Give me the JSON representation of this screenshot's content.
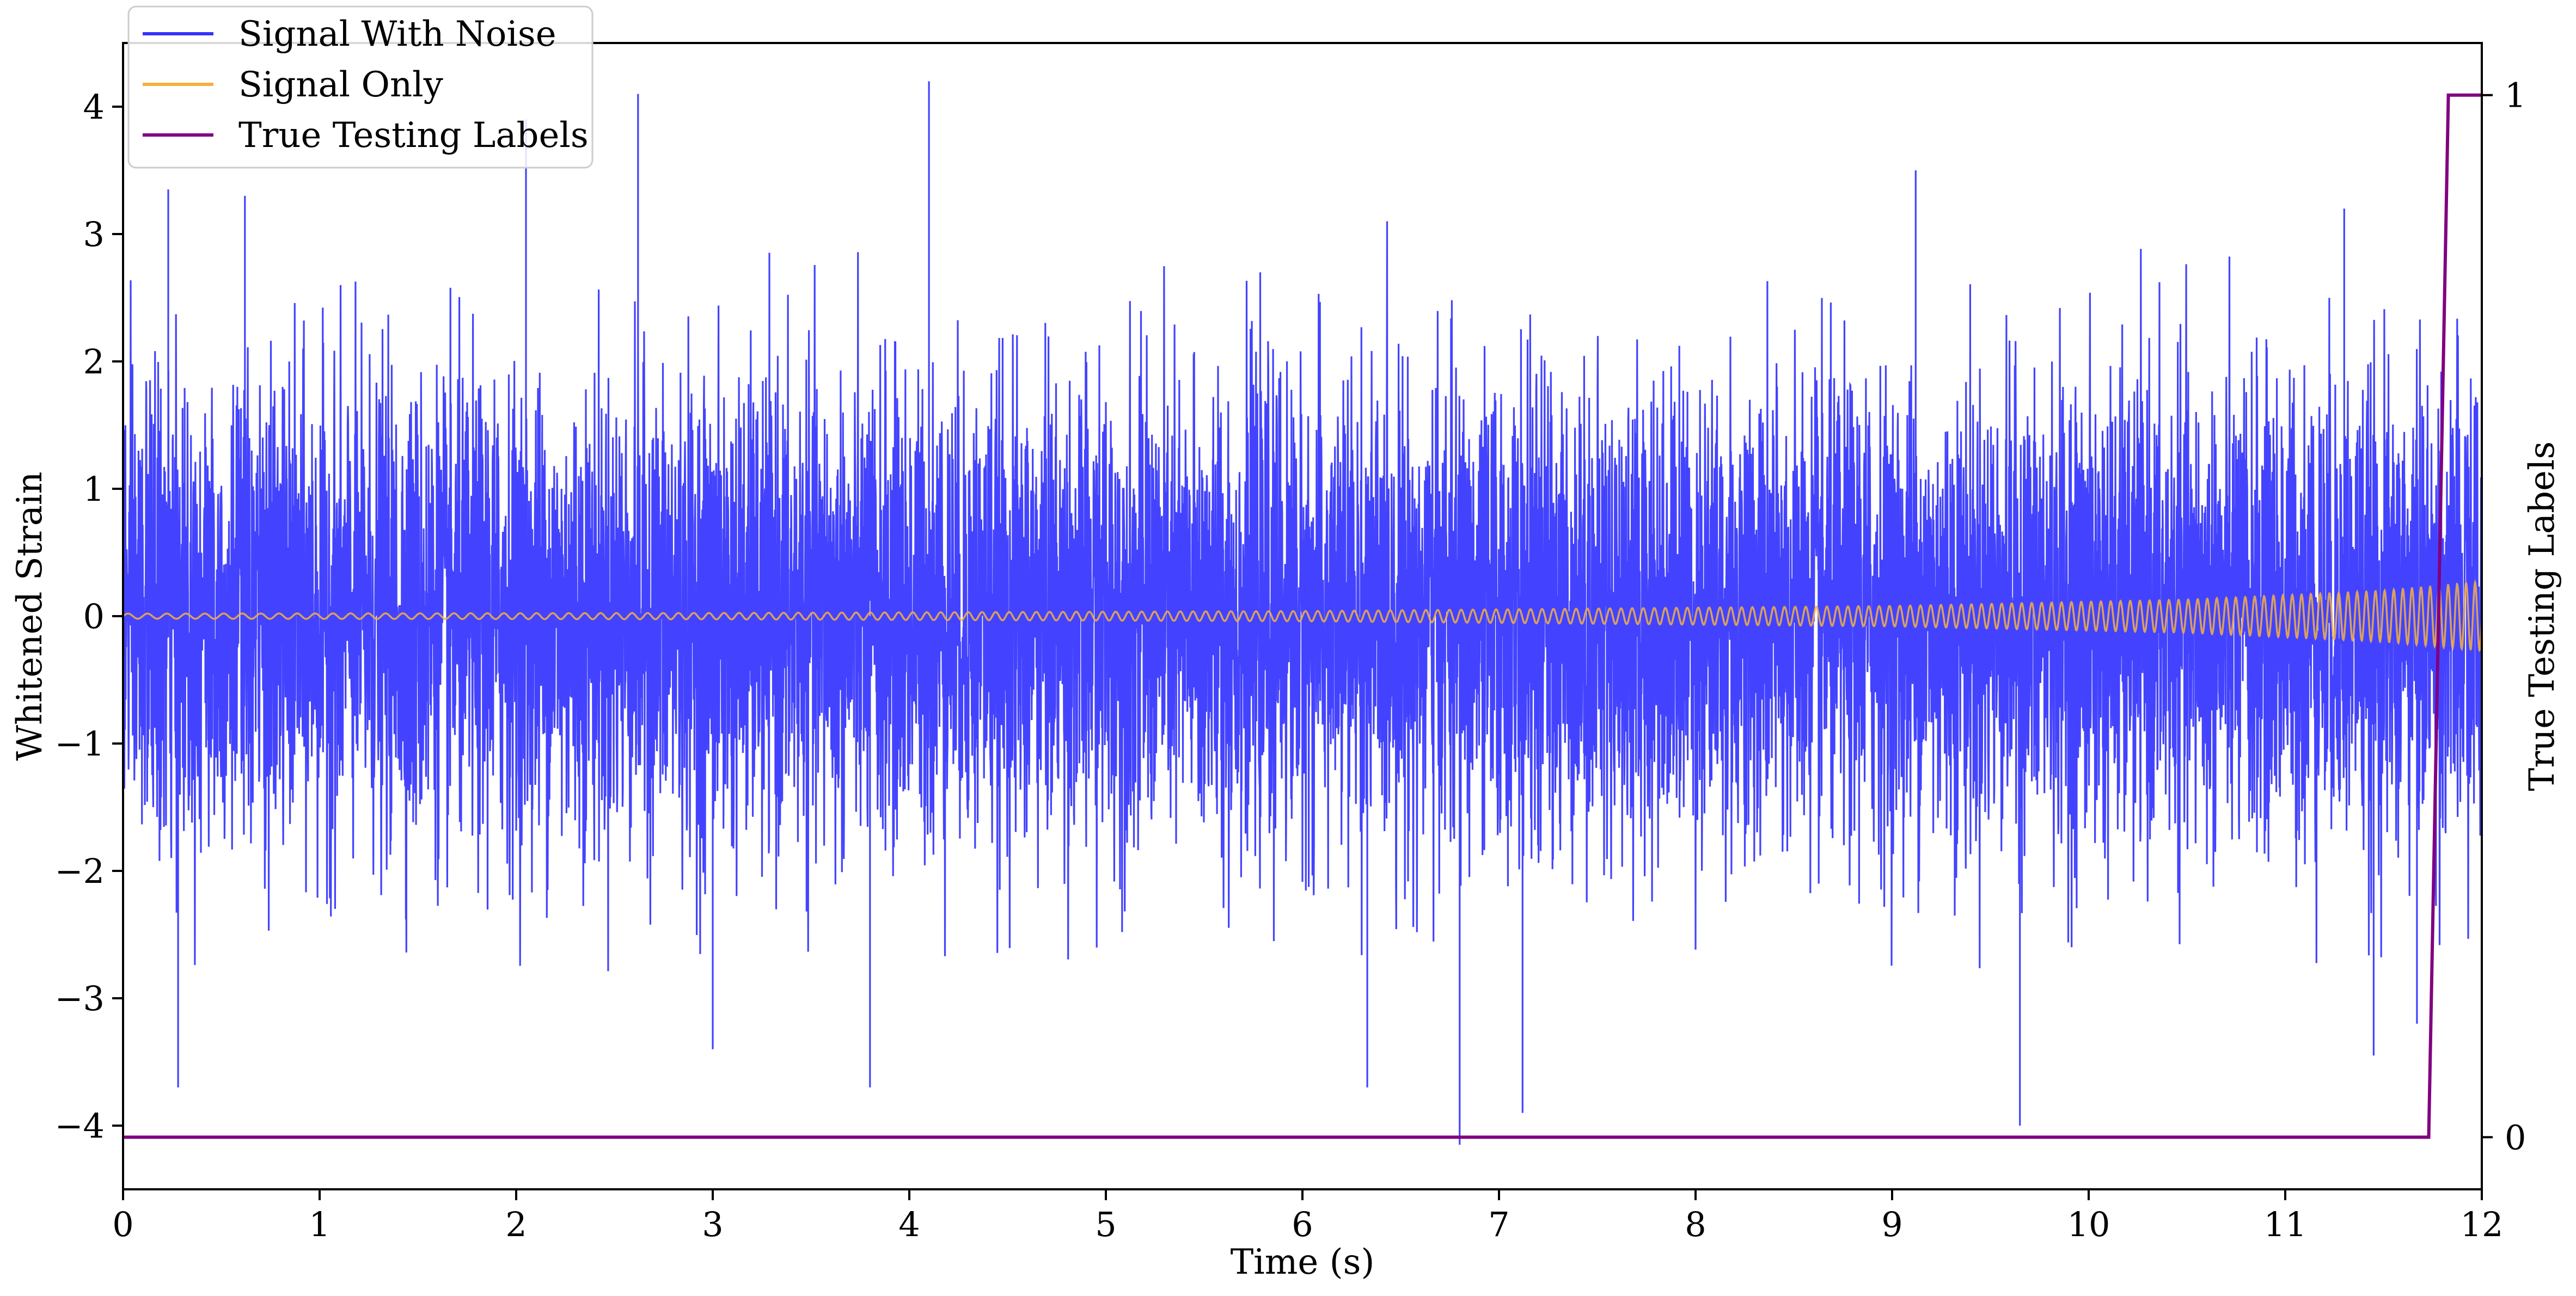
{
  "chart_data": {
    "type": "line",
    "title": "",
    "xlabel": "Time (s)",
    "ylabel": "Whitened Strain",
    "y2label": "True Testing Labels",
    "xlim": [
      0,
      12
    ],
    "ylim": [
      -4.5,
      4.5
    ],
    "y2lim": [
      -0.05,
      1.05
    ],
    "x_ticks": [
      0,
      1,
      2,
      3,
      4,
      5,
      6,
      7,
      8,
      9,
      10,
      11,
      12
    ],
    "y_ticks": [
      -4,
      -3,
      -2,
      -1,
      0,
      1,
      2,
      3,
      4
    ],
    "y2_ticks": [
      0,
      1
    ],
    "grid": false,
    "legend_position": "top-left",
    "series": [
      {
        "name": "Signal With Noise",
        "color": "#3333ff",
        "axis": "left",
        "description_values": {
          "approx_std": 0.9,
          "peaks": [
            {
              "x": 0.23,
              "y": 3.35
            },
            {
              "x": 0.28,
              "y": -3.7
            },
            {
              "x": 0.62,
              "y": 3.3
            },
            {
              "x": 2.05,
              "y": 3.9
            },
            {
              "x": 2.62,
              "y": 4.1
            },
            {
              "x": 3.0,
              "y": -3.4
            },
            {
              "x": 3.8,
              "y": -3.7
            },
            {
              "x": 4.1,
              "y": 4.2
            },
            {
              "x": 6.33,
              "y": -3.7
            },
            {
              "x": 6.8,
              "y": -4.15
            },
            {
              "x": 7.12,
              "y": -3.9
            },
            {
              "x": 9.65,
              "y": -4.0
            },
            {
              "x": 9.12,
              "y": 3.5
            },
            {
              "x": 11.3,
              "y": 3.2
            },
            {
              "x": 11.45,
              "y": -3.45
            },
            {
              "x": 11.67,
              "y": -3.2
            }
          ]
        }
      },
      {
        "name": "Signal Only",
        "color": "#f5b041",
        "axis": "left",
        "envelope": [
          {
            "x": 0,
            "amp": 0.02
          },
          {
            "x": 3,
            "amp": 0.025
          },
          {
            "x": 6,
            "amp": 0.04
          },
          {
            "x": 9,
            "amp": 0.08
          },
          {
            "x": 10.5,
            "amp": 0.13
          },
          {
            "x": 11.5,
            "amp": 0.2
          },
          {
            "x": 12,
            "amp": 0.27
          }
        ],
        "frequency_hz": [
          10,
          22
        ]
      },
      {
        "name": "True Testing Labels",
        "color": "#800080",
        "axis": "right",
        "x": [
          0,
          11.73,
          11.83,
          12
        ],
        "values": [
          0,
          0,
          1,
          1
        ]
      }
    ]
  }
}
